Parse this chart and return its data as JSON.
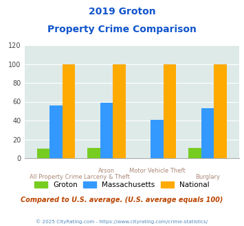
{
  "title_line1": "2019 Groton",
  "title_line2": "Property Crime Comparison",
  "category_labels_row1": [
    "",
    "Arson",
    "Motor Vehicle Theft",
    ""
  ],
  "category_labels_row2": [
    "All Property Crime",
    "Larceny & Theft",
    "",
    "Burglary"
  ],
  "groton": [
    10,
    11,
    0,
    11
  ],
  "massachusetts": [
    56,
    59,
    41,
    53
  ],
  "national": [
    100,
    100,
    100,
    100
  ],
  "colors": {
    "groton": "#77cc22",
    "massachusetts": "#3399ff",
    "national": "#ffaa00"
  },
  "ylim": [
    0,
    120
  ],
  "yticks": [
    0,
    20,
    40,
    60,
    80,
    100,
    120
  ],
  "bg_color": "#ddeae8",
  "title_color": "#1155cc",
  "xlabel_color": "#aa8877",
  "footer_note": "Compared to U.S. average. (U.S. average equals 100)",
  "footer_copy": "© 2025 CityRating.com - https://www.cityrating.com/crime-statistics/",
  "legend_labels": [
    "Groton",
    "Massachusetts",
    "National"
  ]
}
